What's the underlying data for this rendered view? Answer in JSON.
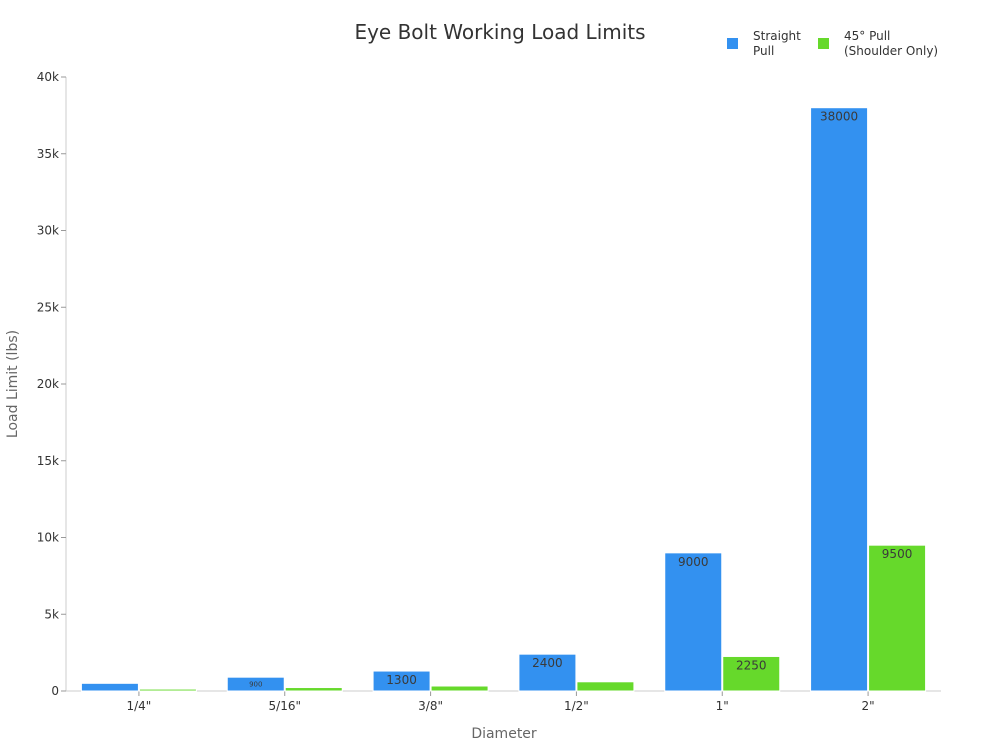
{
  "chart_data": {
    "type": "bar",
    "title": "Eye Bolt Working Load Limits",
    "xlabel": "Diameter",
    "ylabel": "Load Limit (lbs)",
    "categories": [
      "1/4\"",
      "5/16\"",
      "3/8\"",
      "1/2\"",
      "1\"",
      "2\""
    ],
    "series": [
      {
        "name": "Straight Pull",
        "legend_lines": [
          "Straight",
          "Pull"
        ],
        "color": "#3391f0",
        "values": [
          500,
          900,
          1300,
          2400,
          9000,
          38000
        ],
        "labels": [
          "",
          "900",
          "1300",
          "2400",
          "9000",
          "38000"
        ]
      },
      {
        "name": "45° Pull (Shoulder Only)",
        "legend_lines": [
          "45° Pull",
          "(Shoulder Only)"
        ],
        "color": "#66d92b",
        "values": [
          125,
          225,
          325,
          600,
          2250,
          9500
        ],
        "labels": [
          "",
          "",
          "",
          "",
          "2250",
          "9500"
        ]
      }
    ],
    "ylim": [
      0,
      40000
    ],
    "yticks": [
      0,
      5000,
      10000,
      15000,
      20000,
      25000,
      30000,
      35000,
      40000
    ],
    "ytick_labels": [
      "0",
      "5k",
      "10k",
      "15k",
      "20k",
      "25k",
      "30k",
      "35k",
      "40k"
    ],
    "grid": false,
    "legend_position": "top-right"
  }
}
